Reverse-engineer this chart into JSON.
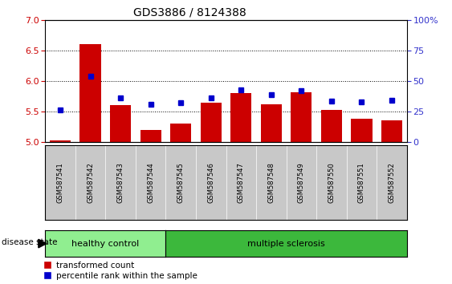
{
  "title": "GDS3886 / 8124388",
  "samples": [
    "GSM587541",
    "GSM587542",
    "GSM587543",
    "GSM587544",
    "GSM587545",
    "GSM587546",
    "GSM587547",
    "GSM587548",
    "GSM587549",
    "GSM587550",
    "GSM587551",
    "GSM587552"
  ],
  "red_bars": [
    5.02,
    6.6,
    5.6,
    5.2,
    5.3,
    5.65,
    5.8,
    5.62,
    5.82,
    5.52,
    5.38,
    5.35
  ],
  "blue_dots": [
    5.52,
    6.08,
    5.72,
    5.62,
    5.65,
    5.72,
    5.86,
    5.77,
    5.84,
    5.67,
    5.66,
    5.68
  ],
  "ylim_left": [
    5.0,
    7.0
  ],
  "ylim_right": [
    0,
    100
  ],
  "yticks_left": [
    5.0,
    5.5,
    6.0,
    6.5,
    7.0
  ],
  "yticks_right": [
    0,
    25,
    50,
    75,
    100
  ],
  "ytick_labels_right": [
    "0",
    "25",
    "50",
    "75",
    "100%"
  ],
  "bar_color": "#cc0000",
  "dot_color": "#0000cc",
  "bar_bottom": 5.0,
  "healthy_count": 4,
  "group1_label": "healthy control",
  "group2_label": "multiple sclerosis",
  "group1_color": "#90ee90",
  "group2_color": "#3cb83c",
  "disease_state_label": "disease state",
  "legend_bar_label": "transformed count",
  "legend_dot_label": "percentile rank within the sample",
  "bg_color": "#ffffff",
  "plot_bg": "#ffffff",
  "tick_label_color_left": "#cc0000",
  "tick_label_color_right": "#3333cc",
  "grid_color": "#000000",
  "xticklabel_bg": "#c8c8c8",
  "grid_yticks": [
    5.5,
    6.0,
    6.5
  ]
}
